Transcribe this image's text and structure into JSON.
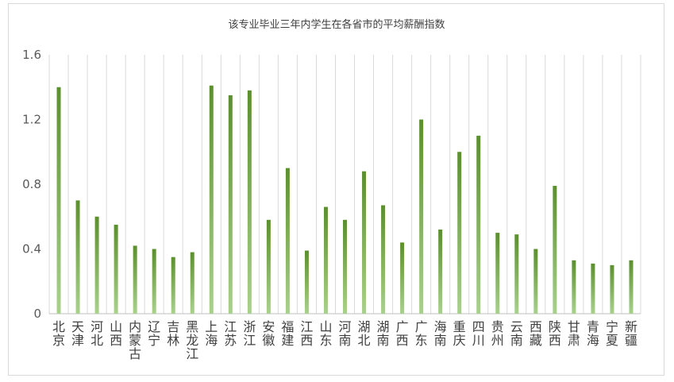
{
  "chart_data": {
    "type": "bar",
    "title": "该专业毕业三年内学生在各省市的平均薪酬指数",
    "xlabel": "",
    "ylabel": "",
    "ylim": [
      0,
      1.6
    ],
    "yticks": [
      "0",
      "0.4",
      "0.8",
      "1.2",
      "1.6"
    ],
    "grid": "vertical",
    "legend": "none",
    "bar_color_top": "#5b8f2e",
    "bar_color_bottom": "#a9d18e",
    "categories": [
      "北京",
      "天津",
      "河北",
      "山西",
      "内蒙古",
      "辽宁",
      "吉林",
      "黑龙江",
      "上海",
      "江苏",
      "浙江",
      "安徽",
      "福建",
      "江西",
      "山东",
      "河南",
      "湖北",
      "湖南",
      "广西",
      "广东",
      "海南",
      "重庆",
      "四川",
      "贵州",
      "云南",
      "西藏",
      "陕西",
      "甘肃",
      "青海",
      "宁夏",
      "新疆"
    ],
    "values": [
      1.4,
      0.7,
      0.6,
      0.55,
      0.42,
      0.4,
      0.35,
      0.38,
      1.41,
      1.35,
      1.38,
      0.58,
      0.9,
      0.39,
      0.66,
      0.58,
      0.88,
      0.67,
      0.44,
      1.2,
      0.52,
      1.0,
      1.1,
      0.5,
      0.49,
      0.4,
      0.79,
      0.33,
      0.31,
      0.3,
      0.33
    ]
  }
}
